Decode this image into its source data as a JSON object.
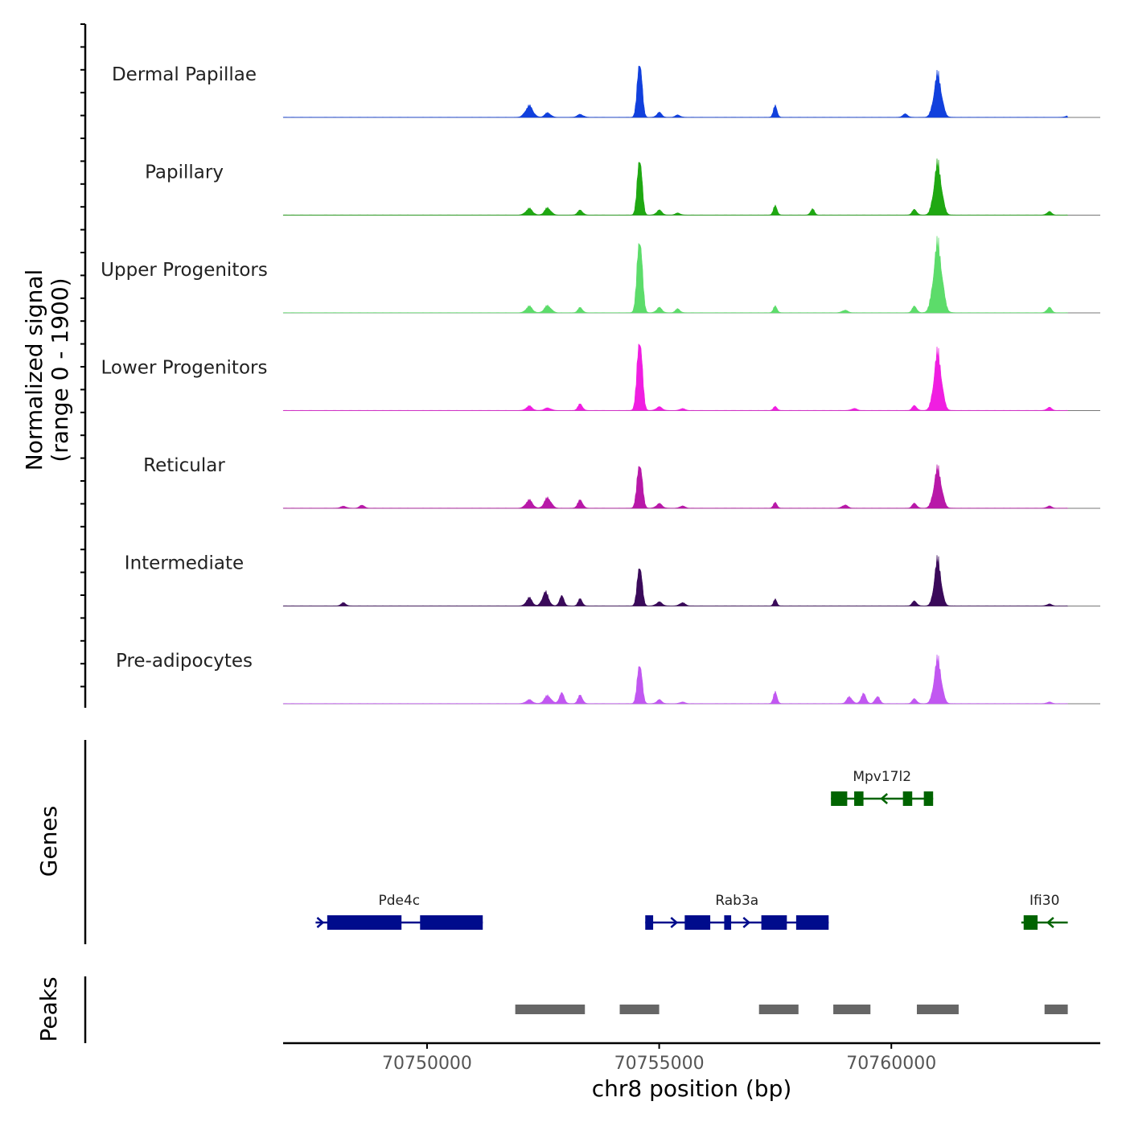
{
  "chart_data": {
    "type": "area",
    "title": "",
    "chromosome": "chr8",
    "xlabel": "chr8 position (bp)",
    "ylabel_line1": "Normalized signal",
    "ylabel_line2": "(range 0 - 1900)",
    "xlim": [
      70746900,
      70764500
    ],
    "ylim": [
      0,
      1900
    ],
    "x_ticks": [
      70750000,
      70755000,
      70760000
    ],
    "x_tick_labels": [
      "70750000",
      "70755000",
      "70760000"
    ],
    "tracks": [
      {
        "name": "Dermal Papillae",
        "color": "#1140dd",
        "peaks": [
          [
            70752200,
            350,
            180
          ],
          [
            70752600,
            140,
            140
          ],
          [
            70753300,
            90,
            140
          ],
          [
            70754580,
            1800,
            110
          ],
          [
            70755000,
            150,
            120
          ],
          [
            70755400,
            70,
            120
          ],
          [
            70757500,
            350,
            90
          ],
          [
            70760300,
            100,
            120
          ],
          [
            70761000,
            1300,
            180
          ],
          [
            70763800,
            40,
            120
          ]
        ]
      },
      {
        "name": "Papillary",
        "color": "#1fa812",
        "peaks": [
          [
            70752200,
            200,
            160
          ],
          [
            70752600,
            220,
            150
          ],
          [
            70753300,
            150,
            120
          ],
          [
            70754580,
            1850,
            110
          ],
          [
            70755000,
            150,
            130
          ],
          [
            70755400,
            60,
            120
          ],
          [
            70757500,
            280,
            90
          ],
          [
            70758300,
            200,
            90
          ],
          [
            70760500,
            170,
            110
          ],
          [
            70761000,
            1550,
            180
          ],
          [
            70763400,
            110,
            110
          ]
        ]
      },
      {
        "name": "Upper Progenitors",
        "color": "#5cdc6a",
        "peaks": [
          [
            70752200,
            200,
            150
          ],
          [
            70752600,
            220,
            160
          ],
          [
            70753300,
            160,
            110
          ],
          [
            70754580,
            2400,
            120
          ],
          [
            70755000,
            160,
            130
          ],
          [
            70755400,
            120,
            110
          ],
          [
            70757500,
            200,
            90
          ],
          [
            70759000,
            80,
            130
          ],
          [
            70760500,
            200,
            110
          ],
          [
            70761000,
            2100,
            200
          ],
          [
            70763400,
            170,
            110
          ]
        ]
      },
      {
        "name": "Lower Progenitors",
        "color": "#f01ee1",
        "peaks": [
          [
            70752200,
            140,
            140
          ],
          [
            70752600,
            80,
            150
          ],
          [
            70753300,
            200,
            110
          ],
          [
            70754580,
            2300,
            120
          ],
          [
            70755000,
            110,
            140
          ],
          [
            70755500,
            60,
            120
          ],
          [
            70757500,
            120,
            90
          ],
          [
            70759200,
            60,
            130
          ],
          [
            70760500,
            150,
            110
          ],
          [
            70761000,
            1750,
            180
          ],
          [
            70763400,
            100,
            110
          ]
        ]
      },
      {
        "name": "Reticular",
        "color": "#b818a8",
        "peaks": [
          [
            70748200,
            60,
            130
          ],
          [
            70748600,
            100,
            110
          ],
          [
            70752200,
            250,
            160
          ],
          [
            70752600,
            320,
            160
          ],
          [
            70753300,
            250,
            120
          ],
          [
            70754580,
            1450,
            120
          ],
          [
            70755000,
            140,
            140
          ],
          [
            70755500,
            70,
            120
          ],
          [
            70757500,
            170,
            90
          ],
          [
            70759000,
            100,
            130
          ],
          [
            70760500,
            150,
            110
          ],
          [
            70761000,
            1200,
            180
          ],
          [
            70763400,
            70,
            110
          ]
        ]
      },
      {
        "name": "Intermediate",
        "color": "#3a0a5a",
        "peaks": [
          [
            70748200,
            100,
            110
          ],
          [
            70752200,
            250,
            140
          ],
          [
            70752550,
            420,
            150
          ],
          [
            70752900,
            300,
            110
          ],
          [
            70753300,
            220,
            100
          ],
          [
            70754580,
            1300,
            110
          ],
          [
            70755000,
            120,
            140
          ],
          [
            70755500,
            100,
            130
          ],
          [
            70757500,
            200,
            80
          ],
          [
            70760500,
            150,
            110
          ],
          [
            70761000,
            1400,
            160
          ],
          [
            70763400,
            60,
            110
          ]
        ]
      },
      {
        "name": "Pre-adipocytes",
        "color": "#c157f1",
        "peaks": [
          [
            70752200,
            120,
            150
          ],
          [
            70752600,
            250,
            160
          ],
          [
            70752900,
            320,
            120
          ],
          [
            70753300,
            260,
            110
          ],
          [
            70754580,
            1300,
            110
          ],
          [
            70755000,
            120,
            120
          ],
          [
            70755500,
            50,
            120
          ],
          [
            70757500,
            350,
            90
          ],
          [
            70759100,
            210,
            130
          ],
          [
            70759400,
            300,
            120
          ],
          [
            70759700,
            230,
            110
          ],
          [
            70760500,
            150,
            110
          ],
          [
            70761000,
            1350,
            170
          ],
          [
            70763400,
            50,
            110
          ]
        ]
      }
    ],
    "genes": [
      {
        "name": "Pde4c",
        "strand": "+",
        "color": "#000c8c",
        "row": 2,
        "start": 70747600,
        "end": 70751200,
        "exons": [
          [
            70747850,
            70749450
          ],
          [
            70749850,
            70751200
          ]
        ]
      },
      {
        "name": "Rab3a",
        "strand": "+",
        "color": "#000c8c",
        "row": 2,
        "start": 70754700,
        "end": 70758650,
        "exons": [
          [
            70754700,
            70754870
          ],
          [
            70755550,
            70756100
          ],
          [
            70756400,
            70756550
          ],
          [
            70757200,
            70757750
          ],
          [
            70757950,
            70758650
          ]
        ]
      },
      {
        "name": "Mpv17l2",
        "strand": "-",
        "color": "#006400",
        "row": 1,
        "start": 70758700,
        "end": 70760900,
        "exons": [
          [
            70758700,
            70759050
          ],
          [
            70759200,
            70759400
          ],
          [
            70760250,
            70760450
          ],
          [
            70760700,
            70760900
          ]
        ]
      },
      {
        "name": "Ifi30",
        "strand": "-",
        "color": "#006400",
        "row": 2,
        "start": 70762800,
        "end": 70763800,
        "exons": [
          [
            70762850,
            70763150
          ]
        ]
      }
    ],
    "peak_regions": [
      [
        70751900,
        70753400
      ],
      [
        70754150,
        70755000
      ],
      [
        70757150,
        70758000
      ],
      [
        70758750,
        70759550
      ],
      [
        70760550,
        70761450
      ],
      [
        70763300,
        70763800
      ]
    ],
    "panels": {
      "signal": "Normalized signal",
      "genes": "Genes",
      "peaks": "Peaks"
    }
  }
}
